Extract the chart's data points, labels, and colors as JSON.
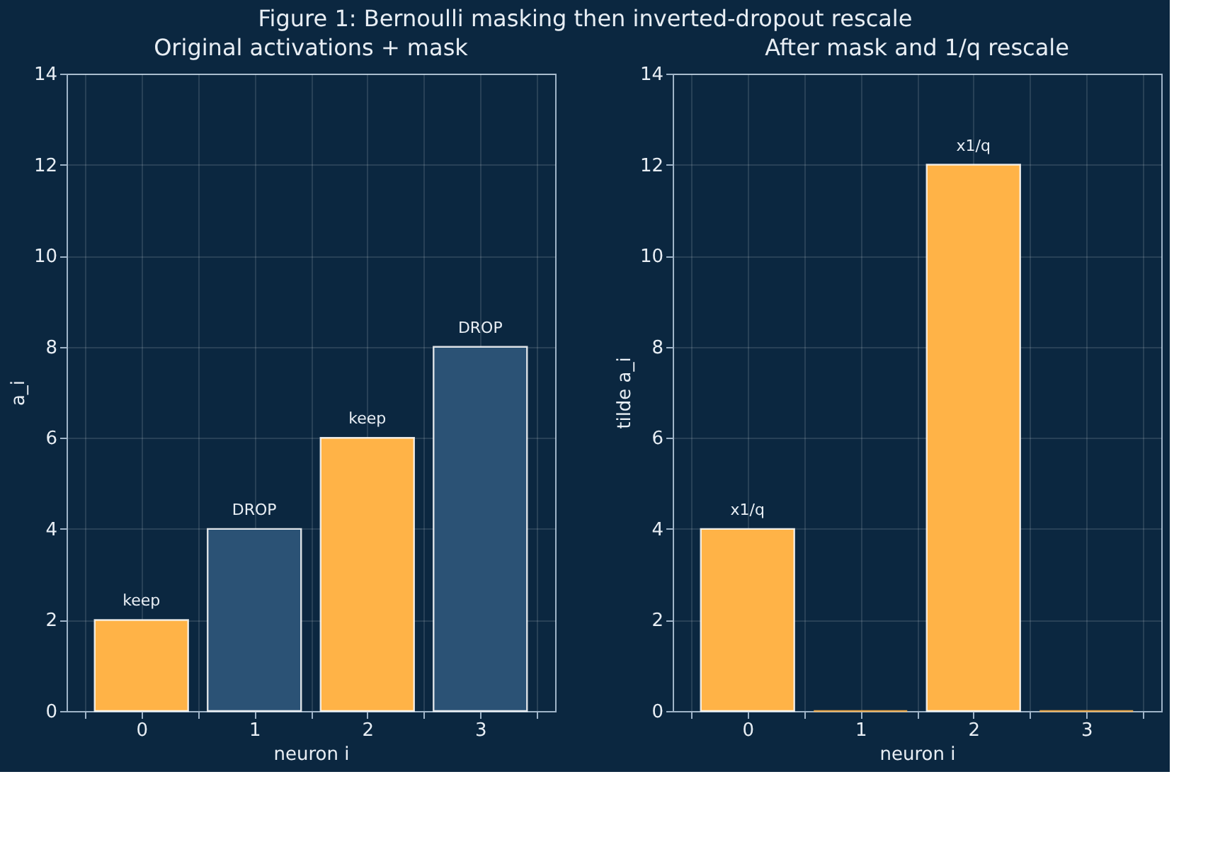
{
  "chart_data": [
    {
      "type": "bar",
      "title": "Original activations + mask",
      "xlabel": "neuron i",
      "ylabel": "a_i",
      "categories": [
        "0",
        "1",
        "2",
        "3"
      ],
      "values": [
        2,
        4,
        6,
        8
      ],
      "colors": [
        "#ffb347",
        "#2b5275",
        "#ffb347",
        "#2b5275"
      ],
      "ylim": [
        0,
        14
      ],
      "yticks": [
        0,
        2,
        4,
        6,
        8,
        10,
        12,
        14
      ],
      "grid": true,
      "annotations": [
        "Figure 1: Bernoulli masking then inverted-dropout rescale",
        {
          "text": "keep",
          "x": "0",
          "y": 2
        },
        {
          "text": "DROP",
          "x": "1",
          "y": 4
        },
        {
          "text": "keep",
          "x": "2",
          "y": 6
        },
        {
          "text": "DROP",
          "x": "3",
          "y": 8
        }
      ]
    },
    {
      "type": "bar",
      "title": "After mask and 1/q rescale",
      "xlabel": "neuron i",
      "ylabel": "tilde a_i",
      "categories": [
        "0",
        "1",
        "2",
        "3"
      ],
      "values": [
        4,
        0,
        12,
        0
      ],
      "colors": [
        "#ffb347",
        "#ffb347",
        "#ffb347",
        "#ffb347"
      ],
      "ylim": [
        0,
        14
      ],
      "yticks": [
        0,
        2,
        4,
        6,
        8,
        10,
        12,
        14
      ],
      "grid": true,
      "annotations": [
        {
          "text": "x1/q",
          "x": "0",
          "y": 4
        },
        {
          "text": "x1/q",
          "x": "2",
          "y": 12
        }
      ]
    }
  ]
}
